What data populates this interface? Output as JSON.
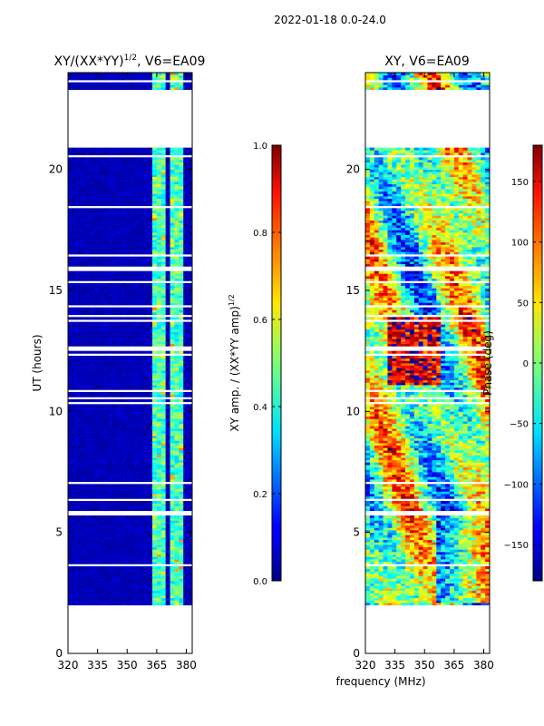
{
  "figure_title": "2022-01-18 0.0-24.0",
  "shared_xlabel": "frequency (MHz)",
  "chart_data": [
    {
      "type": "heatmap",
      "title_main": "XY/(XX*YY)",
      "title_sup": "1/2",
      "title_rest": ", V6=EA09",
      "xlabel": "",
      "ylabel": "UT (hours)",
      "xlim": [
        320,
        383
      ],
      "ylim": [
        0,
        24
      ],
      "xticks": [
        320,
        335,
        350,
        365,
        380
      ],
      "yticks": [
        0,
        5,
        10,
        15,
        20
      ],
      "colorbar": {
        "label_main": "XY amp. / (XX*YY amp)",
        "label_sup": "1/2",
        "range": [
          0.0,
          1.0
        ],
        "ticks": [
          "0.0",
          "0.2",
          "0.4",
          "0.6",
          "0.8",
          "1.0"
        ],
        "tick_values": [
          0.0,
          0.2,
          0.4,
          0.6,
          0.8,
          1.0
        ]
      }
    },
    {
      "type": "heatmap",
      "title_main": "XY, V6=EA09",
      "xlabel": "frequency (MHz)",
      "ylabel": "",
      "xlim": [
        320,
        383
      ],
      "ylim": [
        0,
        24
      ],
      "xticks": [
        320,
        335,
        350,
        365,
        380
      ],
      "yticks": [
        0,
        5,
        10,
        15,
        20
      ],
      "colorbar": {
        "label_main": "Phase (deg)",
        "range": [
          -180,
          180
        ],
        "ticks": [
          "150",
          "100",
          "50",
          "0",
          "−50",
          "−100",
          "−150"
        ],
        "tick_values": [
          150,
          100,
          50,
          0,
          -50,
          -100,
          -150
        ]
      }
    }
  ],
  "data_coverage": {
    "blocks_ut": [
      [
        1.95,
        5.75
      ],
      [
        5.95,
        18.45
      ],
      [
        18.5,
        20.55
      ],
      [
        20.65,
        20.9
      ],
      [
        23.3,
        24.0
      ]
    ],
    "amp_bright_channels_mhz": [
      [
        362,
        366.5
      ],
      [
        368,
        370.5
      ],
      [
        372,
        375.5
      ],
      [
        377,
        379.5
      ]
    ]
  }
}
